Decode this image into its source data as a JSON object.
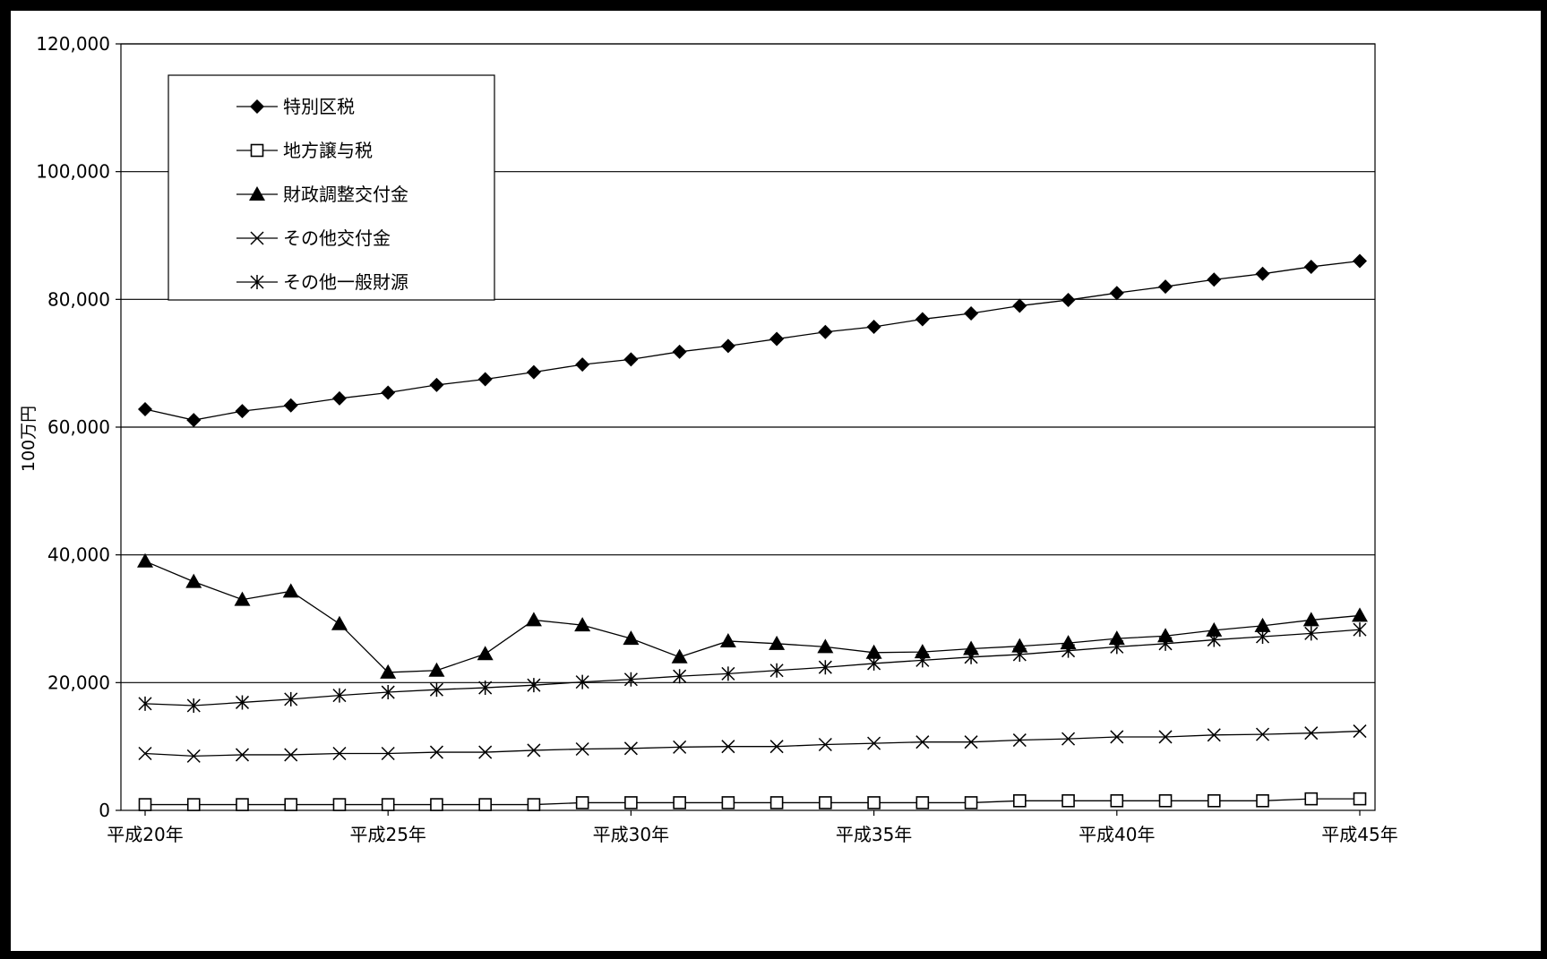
{
  "chart_data": {
    "type": "line",
    "title": "",
    "xlabel": "",
    "ylabel": "100万円",
    "ylim": [
      0,
      120000
    ],
    "yticks": [
      0,
      20000,
      40000,
      60000,
      80000,
      100000,
      120000
    ],
    "ytick_labels": [
      "0",
      "20,000",
      "40,000",
      "60,000",
      "80,000",
      "100,000",
      "120,000"
    ],
    "x": [
      20,
      21,
      22,
      23,
      24,
      25,
      26,
      27,
      28,
      29,
      30,
      31,
      32,
      33,
      34,
      35,
      36,
      37,
      38,
      39,
      40,
      41,
      42,
      43,
      44,
      45
    ],
    "xtick_labels": [
      {
        "x": 20,
        "label": "平成20年"
      },
      {
        "x": 25,
        "label": "平成25年"
      },
      {
        "x": 30,
        "label": "平成30年"
      },
      {
        "x": 35,
        "label": "平成35年"
      },
      {
        "x": 40,
        "label": "平成40年"
      },
      {
        "x": 45,
        "label": "平成45年"
      }
    ],
    "grid": "horizontal",
    "legend_position": "top-left",
    "series": [
      {
        "name": "特別区税",
        "marker": "diamond",
        "values": [
          62800,
          61100,
          62500,
          63400,
          64500,
          65400,
          66600,
          67500,
          68600,
          69800,
          70600,
          71800,
          72700,
          73800,
          74900,
          75700,
          76900,
          77800,
          79000,
          79900,
          81000,
          82000,
          83100,
          84000,
          85100,
          86000
        ]
      },
      {
        "name": "地方譲与税",
        "marker": "square-open",
        "values": [
          900,
          900,
          900,
          900,
          900,
          900,
          900,
          900,
          900,
          1200,
          1200,
          1200,
          1200,
          1200,
          1200,
          1200,
          1200,
          1200,
          1500,
          1500,
          1500,
          1500,
          1500,
          1500,
          1800,
          1800
        ]
      },
      {
        "name": "財政調整交付金",
        "marker": "triangle",
        "values": [
          39000,
          35800,
          33000,
          34300,
          29200,
          21600,
          21900,
          24500,
          29800,
          29000,
          26900,
          24000,
          26500,
          26100,
          25600,
          24700,
          24800,
          25300,
          25700,
          26200,
          26900,
          27300,
          28200,
          28900,
          29800,
          30500
        ]
      },
      {
        "name": "その他交付金",
        "marker": "x",
        "values": [
          8900,
          8500,
          8700,
          8700,
          8900,
          8900,
          9100,
          9100,
          9400,
          9600,
          9700,
          9900,
          10000,
          10000,
          10300,
          10500,
          10700,
          10700,
          11000,
          11200,
          11500,
          11500,
          11800,
          11900,
          12100,
          12400
        ]
      },
      {
        "name": "その他一般財源",
        "marker": "star",
        "values": [
          16700,
          16400,
          16900,
          17400,
          18000,
          18500,
          18900,
          19200,
          19600,
          20100,
          20500,
          21000,
          21400,
          21900,
          22400,
          23000,
          23500,
          24000,
          24400,
          25000,
          25600,
          26100,
          26700,
          27200,
          27700,
          28300
        ]
      }
    ]
  }
}
